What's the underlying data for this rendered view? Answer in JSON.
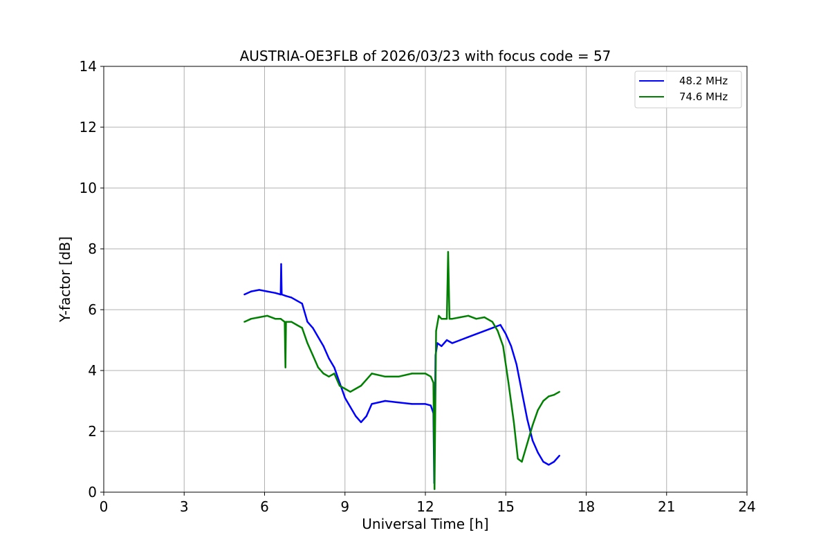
{
  "chart_data": {
    "type": "line",
    "title": "AUSTRIA-OE3FLB of 2026/03/23 with focus code = 57",
    "xlabel": "Universal Time [h]",
    "ylabel": "Y-factor [dB]",
    "xlim": [
      0,
      24
    ],
    "ylim": [
      0,
      14
    ],
    "xticks": [
      0,
      3,
      6,
      9,
      12,
      15,
      18,
      21,
      24
    ],
    "yticks": [
      0,
      2,
      4,
      6,
      8,
      10,
      12,
      14
    ],
    "xtick_labels": [
      "0",
      "3",
      "6",
      "9",
      "12",
      "15",
      "18",
      "21",
      "24"
    ],
    "ytick_labels": [
      "0",
      "2",
      "4",
      "6",
      "8",
      "10",
      "12",
      "14"
    ],
    "grid": true,
    "legend_position": "top-right",
    "series": [
      {
        "name": "48.2 MHz",
        "color": "#0000ff",
        "x": [
          5.25,
          5.5,
          5.8,
          6.1,
          6.4,
          6.6,
          6.62,
          6.64,
          6.8,
          7.0,
          7.2,
          7.4,
          7.6,
          7.8,
          8.0,
          8.2,
          8.4,
          8.6,
          8.8,
          9.0,
          9.2,
          9.4,
          9.6,
          9.8,
          10.0,
          10.5,
          11.0,
          11.5,
          12.0,
          12.2,
          12.3,
          12.33,
          12.38,
          12.45,
          12.6,
          12.8,
          13.0,
          13.3,
          13.6,
          13.9,
          14.2,
          14.5,
          14.8,
          15.0,
          15.2,
          15.4,
          15.6,
          15.8,
          16.0,
          16.2,
          16.4,
          16.6,
          16.8,
          17.0
        ],
        "y": [
          6.5,
          6.6,
          6.65,
          6.6,
          6.55,
          6.5,
          7.5,
          6.5,
          6.45,
          6.4,
          6.3,
          6.2,
          5.6,
          5.4,
          5.1,
          4.8,
          4.4,
          4.1,
          3.6,
          3.1,
          2.8,
          2.5,
          2.3,
          2.5,
          2.9,
          3.0,
          2.95,
          2.9,
          2.9,
          2.85,
          2.6,
          0.3,
          4.5,
          4.9,
          4.8,
          5.0,
          4.9,
          5.0,
          5.1,
          5.2,
          5.3,
          5.4,
          5.5,
          5.2,
          4.8,
          4.2,
          3.3,
          2.4,
          1.7,
          1.3,
          1.0,
          0.9,
          1.0,
          1.2
        ]
      },
      {
        "name": "74.6 MHz",
        "color": "#008000",
        "x": [
          5.25,
          5.5,
          5.8,
          6.1,
          6.4,
          6.6,
          6.75,
          6.78,
          6.8,
          7.0,
          7.2,
          7.4,
          7.6,
          7.8,
          8.0,
          8.2,
          8.4,
          8.6,
          8.8,
          9.0,
          9.2,
          9.4,
          9.6,
          9.8,
          10.0,
          10.5,
          11.0,
          11.5,
          12.0,
          12.2,
          12.3,
          12.34,
          12.4,
          12.5,
          12.6,
          12.8,
          12.85,
          12.9,
          13.0,
          13.3,
          13.6,
          13.9,
          14.2,
          14.5,
          14.7,
          14.9,
          15.1,
          15.3,
          15.45,
          15.6,
          15.8,
          16.0,
          16.2,
          16.4,
          16.6,
          16.8,
          17.0
        ],
        "y": [
          5.6,
          5.7,
          5.75,
          5.8,
          5.7,
          5.7,
          5.6,
          4.1,
          5.6,
          5.6,
          5.5,
          5.4,
          4.9,
          4.5,
          4.1,
          3.9,
          3.8,
          3.9,
          3.5,
          3.4,
          3.3,
          3.4,
          3.5,
          3.7,
          3.9,
          3.8,
          3.8,
          3.9,
          3.9,
          3.8,
          3.6,
          0.1,
          5.3,
          5.8,
          5.7,
          5.7,
          7.9,
          5.7,
          5.7,
          5.75,
          5.8,
          5.7,
          5.75,
          5.6,
          5.3,
          4.8,
          3.6,
          2.3,
          1.1,
          1.0,
          1.6,
          2.2,
          2.7,
          3.0,
          3.15,
          3.2,
          3.3
        ]
      }
    ]
  }
}
